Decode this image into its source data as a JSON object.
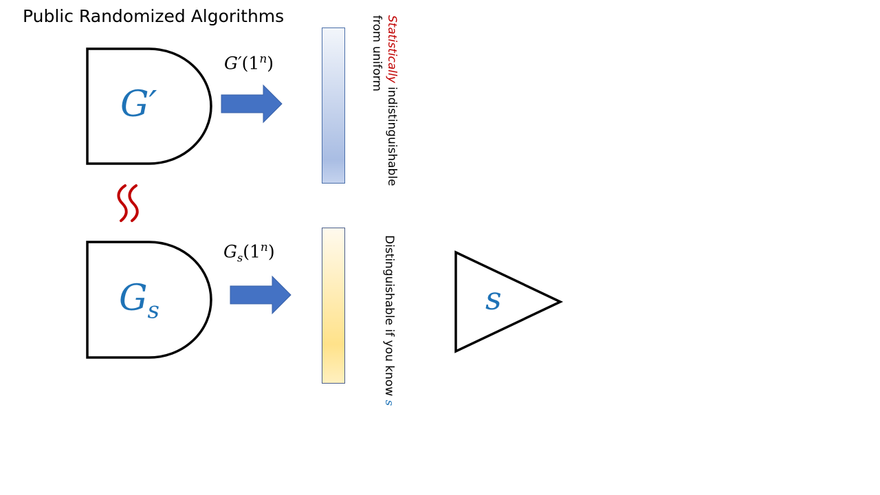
{
  "title": "Public Randomized Algorithms",
  "gate_top": {
    "label": "G′"
  },
  "gate_bottom": {
    "label_main": "G",
    "label_sub": "s"
  },
  "output_top": {
    "fn": "G′",
    "open": "(1",
    "exp": "n",
    "close": ")"
  },
  "output_bottom": {
    "fn": "G",
    "sub": "s",
    "open": "(1",
    "exp": "n",
    "close": ")"
  },
  "approx_symbol": "≈",
  "note_top": {
    "emphasis": "Statistically",
    "rest": " indistinguishable",
    "line2": "from uniform"
  },
  "note_bottom": {
    "text": "Distinguishable if you know ",
    "var": "s"
  },
  "triangle": {
    "label": "s"
  },
  "colors": {
    "arrow": "#4472c4",
    "bar_top_border": "#4a6ea8",
    "bar_bottom_border": "#6b6b9a",
    "accent_blue": "#1f73b7",
    "accent_red": "#c00000"
  }
}
